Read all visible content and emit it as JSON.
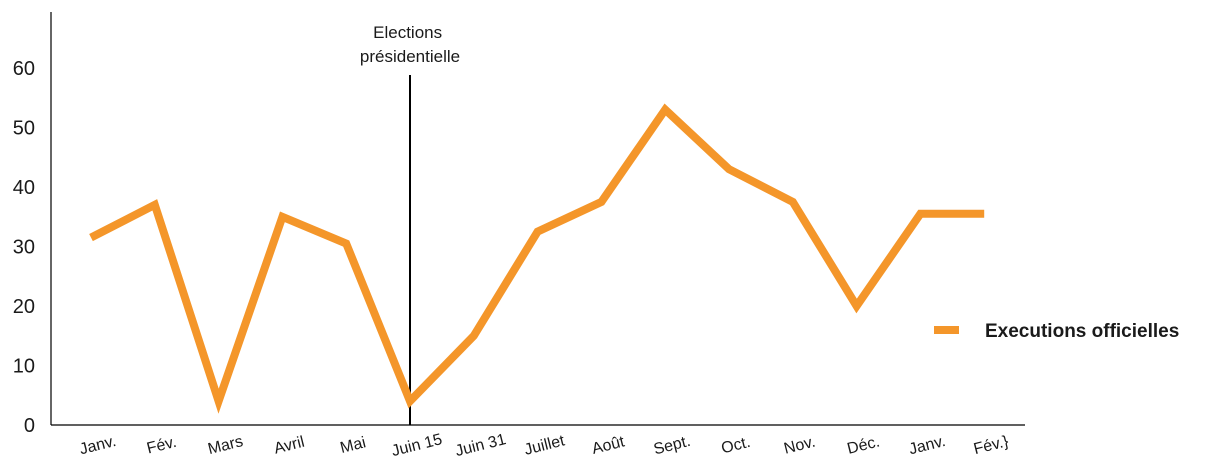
{
  "chart_data": {
    "type": "line",
    "title": "",
    "xlabel": "",
    "ylabel": "",
    "categories": [
      "Janv.",
      "Fév.",
      "Mars",
      "Avril",
      "Mai",
      "Juin 15",
      "Juin 31",
      "Juillet",
      "Août",
      "Sept.",
      "Oct.",
      "Nov.",
      "Déc.",
      "Janv.",
      "Fév.}"
    ],
    "series": [
      {
        "name": "Executions officielles",
        "color": "#f4962a",
        "values": [
          31.5,
          37,
          4,
          35,
          30.5,
          4,
          15,
          32.5,
          37.5,
          53,
          43,
          37.5,
          20,
          35.5,
          35.5
        ]
      }
    ],
    "ylim": [
      0,
      70
    ],
    "yticks": [
      "0",
      "10",
      "20",
      "30",
      "40",
      "50",
      "60"
    ],
    "annotation": {
      "lines": [
        "Elections",
        "présidentielle"
      ],
      "at_category": "Juin 15"
    },
    "grid": false,
    "legend_position": "right"
  }
}
